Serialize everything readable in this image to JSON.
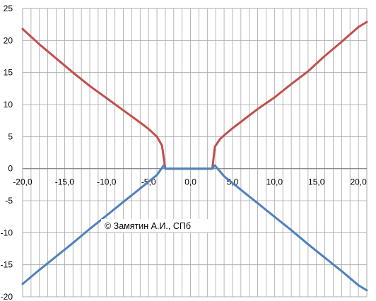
{
  "chart_data": {
    "type": "line",
    "title": "",
    "xlabel": "",
    "ylabel": "",
    "xlim": [
      -20,
      21
    ],
    "ylim": [
      -20,
      25
    ],
    "grid": true,
    "legend": "none",
    "x_tick_labels": [
      "-20,0",
      "-15,0",
      "-10,0",
      "-5,0",
      "0,0",
      "5,0",
      "10,0",
      "15,0",
      "20,0"
    ],
    "x_tick_values": [
      -20,
      -15,
      -10,
      -5,
      0,
      5,
      10,
      15,
      20
    ],
    "y_tick_labels": [
      "-20",
      "-15",
      "-10",
      "-5",
      "0",
      "5",
      "10",
      "15",
      "20",
      "25"
    ],
    "y_tick_values": [
      -20,
      -15,
      -10,
      -5,
      0,
      5,
      10,
      15,
      20,
      25
    ],
    "annotation": "© Замятин А.И., СПб",
    "series": [
      {
        "color": "#c0504d",
        "points": [
          [
            -20.0,
            21.8
          ],
          [
            -18.0,
            19.4
          ],
          [
            -16.0,
            17.2
          ],
          [
            -14.0,
            15.0
          ],
          [
            -12.0,
            12.9
          ],
          [
            -10.0,
            11.0
          ],
          [
            -8.0,
            9.1
          ],
          [
            -6.0,
            7.2
          ],
          [
            -5.0,
            6.2
          ],
          [
            -4.0,
            5.0
          ],
          [
            -3.4,
            3.6
          ],
          [
            -3.0,
            0.0
          ],
          [
            -2.0,
            0.0
          ],
          [
            0.0,
            0.0
          ],
          [
            2.0,
            0.0
          ],
          [
            2.6,
            0.0
          ],
          [
            2.9,
            3.4
          ],
          [
            3.5,
            4.6
          ],
          [
            4.0,
            5.2
          ],
          [
            5.0,
            6.3
          ],
          [
            6.0,
            7.3
          ],
          [
            8.0,
            9.3
          ],
          [
            10.0,
            11.1
          ],
          [
            12.0,
            13.2
          ],
          [
            14.0,
            15.2
          ],
          [
            16.0,
            17.6
          ],
          [
            18.0,
            19.8
          ],
          [
            20.0,
            22.1
          ],
          [
            21.0,
            22.9
          ]
        ]
      },
      {
        "color": "#4f81bd",
        "points": [
          [
            -20.0,
            -18.0
          ],
          [
            -18.0,
            -15.8
          ],
          [
            -16.0,
            -13.7
          ],
          [
            -14.0,
            -11.6
          ],
          [
            -12.0,
            -9.4
          ],
          [
            -10.0,
            -7.3
          ],
          [
            -8.0,
            -5.2
          ],
          [
            -6.0,
            -3.1
          ],
          [
            -4.0,
            -1.0
          ],
          [
            -3.2,
            0.5
          ],
          [
            -3.0,
            0.0
          ],
          [
            2.6,
            0.0
          ],
          [
            2.9,
            0.5
          ],
          [
            4.0,
            -1.2
          ],
          [
            6.0,
            -3.3
          ],
          [
            8.0,
            -5.4
          ],
          [
            10.0,
            -7.5
          ],
          [
            12.0,
            -9.6
          ],
          [
            14.0,
            -11.8
          ],
          [
            16.0,
            -13.9
          ],
          [
            18.0,
            -16.0
          ],
          [
            20.0,
            -18.2
          ],
          [
            21.0,
            -19.0
          ]
        ]
      }
    ]
  }
}
